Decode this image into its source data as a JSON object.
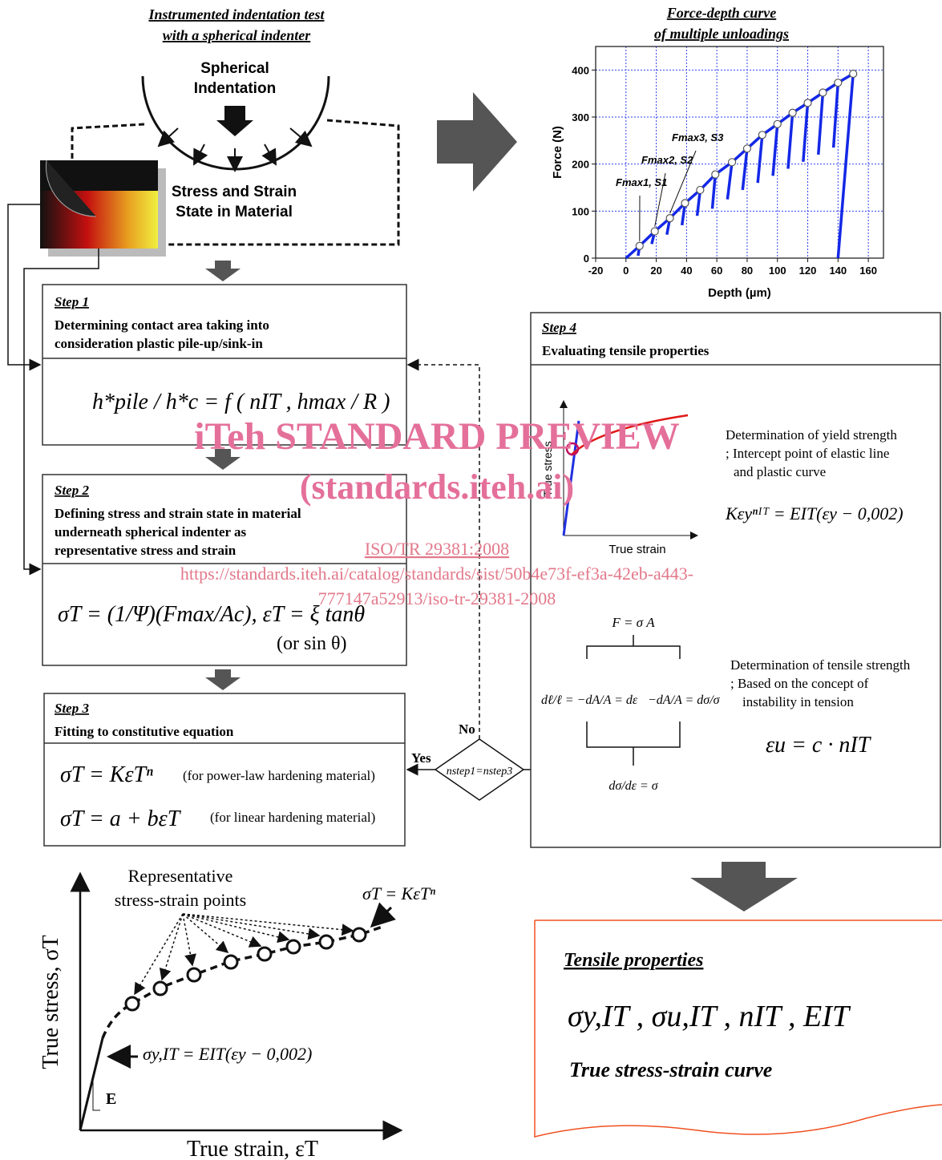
{
  "header": {
    "title_line1": "Instrumented indentation test",
    "title_line2": "with a spherical indenter"
  },
  "indentation": {
    "label_line1": "Spherical",
    "label_line2": "Indentation",
    "state_line1": "Stress and Strain",
    "state_line2": "State in Material"
  },
  "step1": {
    "label": "Step 1",
    "line1": "Determining contact area taking into",
    "line2": "consideration plastic pile-up/sink-in",
    "equation": "h*pile / h*c  =  f ( nIT , hmax / R )"
  },
  "step2": {
    "label": "Step 2",
    "line1": "Defining stress and strain state in material",
    "line2": "underneath spherical indenter as",
    "line3": "representative stress and strain",
    "equation": "σT = (1/Ψ)(Fmax/Ac),  εT = ξ tanθ",
    "equation_note": "(or sin θ)"
  },
  "step3": {
    "label": "Step 3",
    "line1": "Fitting to constitutive equation",
    "equation1": "σT = KεTⁿ",
    "note1": "(for power-law hardening material)",
    "equation2": "σT = a + bεT",
    "note2": "(for linear  hardening material)"
  },
  "decision": {
    "condition": "nstep1=nstep3",
    "no": "No",
    "yes": "Yes"
  },
  "force_depth_chart": {
    "title_line1": "Force-depth curve",
    "title_line2": "of multiple unloadings",
    "x_label": "Depth (µm)",
    "y_label": "Force (N)",
    "xlim": [
      -20,
      170
    ],
    "ylim": [
      0,
      450
    ],
    "xticks": [
      -20,
      0,
      20,
      40,
      60,
      80,
      100,
      120,
      140,
      160
    ],
    "yticks": [
      0,
      100,
      200,
      300,
      400
    ],
    "grid": true,
    "color": "#1428e6",
    "x": [
      9,
      19,
      29,
      39,
      49,
      59,
      70,
      80,
      90,
      100,
      110,
      120,
      130,
      140,
      150
    ],
    "y": [
      26,
      57,
      85,
      117,
      145,
      178,
      204,
      233,
      262,
      285,
      309,
      330,
      352,
      373,
      392
    ],
    "unload_x": [
      8,
      17,
      27,
      37,
      47,
      57,
      67,
      77,
      87,
      97,
      107,
      117,
      127,
      137,
      140
    ],
    "unload_y": [
      5,
      30,
      50,
      70,
      90,
      105,
      125,
      145,
      160,
      175,
      190,
      205,
      220,
      235,
      0
    ],
    "annotation1": "Fmax1, S1",
    "annotation2": "Fmax2, S2",
    "annotation3": "Fmax3, S3"
  },
  "step4": {
    "label": "Step 4",
    "title": "Evaluating tensile properties",
    "y_axis": "True stress",
    "x_axis": "True strain",
    "yield_line1": "Determination of yield strength",
    "yield_line2": "; Intercept point of elastic line",
    "yield_line3": "and plastic curve",
    "yield_equation": "Kεyⁿᴵᵀ = EIT(εy − 0,002)",
    "force_equation": "F = σ A",
    "derivation1": "dℓ/ℓ = −dA/A = dε",
    "derivation2": "−dA/A = dσ/σ",
    "derivation3": "dσ/dε = σ",
    "tensile_line1": "Determination of tensile strength",
    "tensile_line2": "; Based on the concept of",
    "tensile_line3": "instability in tension",
    "tensile_equation": "εu = c · nIT"
  },
  "sketch": {
    "points_line1": "Representative",
    "points_line2": "stress-strain points",
    "power_law": "σT = KεTⁿ",
    "yield_equation": "σy,IT = EIT(εy − 0,002)",
    "modulus": "E",
    "y_label": "True stress, σT",
    "x_label": "True strain, εT"
  },
  "tensile_properties": {
    "title": "Tensile properties",
    "symbols": "σy,IT ,  σu,IT ,  nIT ,  EIT",
    "curve": "True stress-strain curve"
  },
  "watermark": {
    "line1": "iTeh STANDARD PREVIEW",
    "line2": "(standards.iteh.ai)",
    "line3": "ISO/TR 29381:2008",
    "line4": "https://standards.iteh.ai/catalog/standards/sist/50b4e73f-ef3a-42eb-a443-",
    "line5": "777147a52913/iso-tr-29381-2008"
  }
}
